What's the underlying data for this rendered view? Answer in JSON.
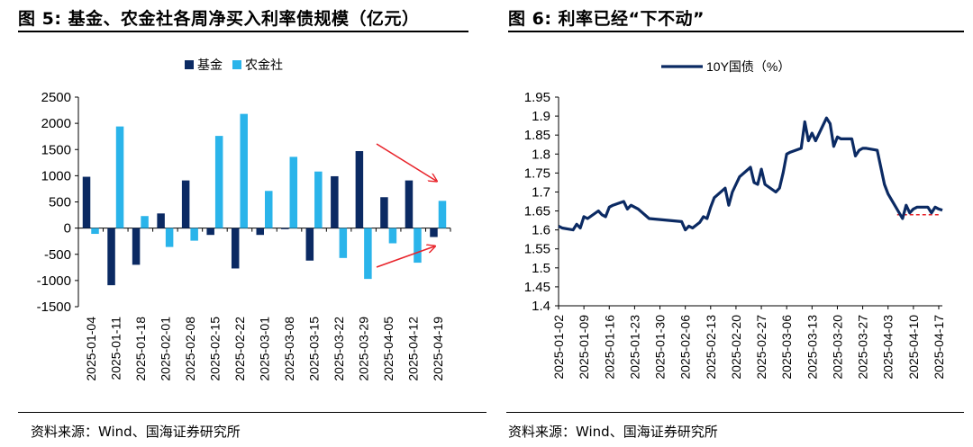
{
  "left": {
    "title": "图 5:  基金、农金社各周净买入利率债规模（亿元）",
    "source": "资料来源：Wind、国海证券研究所"
  },
  "right": {
    "title": "图 6:  利率已经“下不动”",
    "source": "资料来源：Wind、国海证券研究所"
  },
  "chart_data": [
    {
      "type": "bar",
      "title": "",
      "xlabel": "",
      "ylabel": "",
      "ylim": [
        -1500,
        2500
      ],
      "yticks": [
        -1500,
        -1000,
        -500,
        0,
        500,
        1000,
        1500,
        2000,
        2500
      ],
      "legend_position": "top",
      "categories": [
        "2025-01-04",
        "2025-01-11",
        "2025-01-18",
        "2025-02-01",
        "2025-02-08",
        "2025-02-15",
        "2025-02-22",
        "2025-03-01",
        "2025-03-08",
        "2025-03-15",
        "2025-03-22",
        "2025-03-29",
        "2025-04-05",
        "2025-04-12",
        "2025-04-19"
      ],
      "series": [
        {
          "name": "基金",
          "color": "#0b2a63",
          "values": [
            980,
            -1090,
            -700,
            280,
            910,
            -130,
            -770,
            -130,
            -20,
            -620,
            990,
            1470,
            590,
            910,
            -170
          ]
        },
        {
          "name": "农金社",
          "color": "#2ab4ea",
          "values": [
            -110,
            1940,
            230,
            -360,
            -240,
            1760,
            2180,
            710,
            1360,
            1080,
            -570,
            -970,
            -290,
            -660,
            520
          ]
        }
      ],
      "annotations": {
        "arrow_color": "#e8232a"
      }
    },
    {
      "type": "line",
      "title": "",
      "xlabel": "",
      "ylabel": "",
      "ylim": [
        1.4,
        1.95
      ],
      "yticks": [
        1.4,
        1.45,
        1.5,
        1.55,
        1.6,
        1.65,
        1.7,
        1.75,
        1.8,
        1.85,
        1.9,
        1.95
      ],
      "xticks": [
        "2025-01-02",
        "2025-01-09",
        "2025-01-16",
        "2025-01-23",
        "2025-01-30",
        "2025-02-06",
        "2025-02-13",
        "2025-02-20",
        "2025-02-27",
        "2025-03-06",
        "2025-03-13",
        "2025-03-20",
        "2025-03-27",
        "2025-04-03",
        "2025-04-10",
        "2025-04-17"
      ],
      "xrange": [
        "2025-01-02",
        "2025-04-18"
      ],
      "legend_position": "top",
      "series": [
        {
          "name": "10Y国债（%）",
          "color": "#0b2a63",
          "x": [
            "2025-01-02",
            "2025-01-03",
            "2025-01-06",
            "2025-01-07",
            "2025-01-08",
            "2025-01-09",
            "2025-01-10",
            "2025-01-13",
            "2025-01-14",
            "2025-01-15",
            "2025-01-16",
            "2025-01-17",
            "2025-01-20",
            "2025-01-21",
            "2025-01-22",
            "2025-01-23",
            "2025-01-24",
            "2025-01-27",
            "2025-02-05",
            "2025-02-06",
            "2025-02-07",
            "2025-02-08",
            "2025-02-10",
            "2025-02-11",
            "2025-02-12",
            "2025-02-13",
            "2025-02-14",
            "2025-02-17",
            "2025-02-18",
            "2025-02-19",
            "2025-02-20",
            "2025-02-21",
            "2025-02-24",
            "2025-02-25",
            "2025-02-26",
            "2025-02-27",
            "2025-02-28",
            "2025-03-03",
            "2025-03-04",
            "2025-03-05",
            "2025-03-06",
            "2025-03-07",
            "2025-03-10",
            "2025-03-11",
            "2025-03-12",
            "2025-03-13",
            "2025-03-14",
            "2025-03-17",
            "2025-03-18",
            "2025-03-19",
            "2025-03-20",
            "2025-03-21",
            "2025-03-24",
            "2025-03-25",
            "2025-03-26",
            "2025-03-27",
            "2025-03-28",
            "2025-03-31",
            "2025-04-01",
            "2025-04-02",
            "2025-04-03",
            "2025-04-07",
            "2025-04-08",
            "2025-04-09",
            "2025-04-10",
            "2025-04-11",
            "2025-04-14",
            "2025-04-15",
            "2025-04-16",
            "2025-04-17",
            "2025-04-18"
          ],
          "y": [
            1.61,
            1.605,
            1.6,
            1.615,
            1.605,
            1.635,
            1.63,
            1.65,
            1.64,
            1.635,
            1.66,
            1.665,
            1.675,
            1.655,
            1.665,
            1.66,
            1.655,
            1.63,
            1.622,
            1.6,
            1.61,
            1.605,
            1.62,
            1.635,
            1.63,
            1.66,
            1.685,
            1.71,
            1.665,
            1.7,
            1.72,
            1.74,
            1.765,
            1.725,
            1.72,
            1.76,
            1.72,
            1.7,
            1.71,
            1.75,
            1.8,
            1.805,
            1.815,
            1.885,
            1.835,
            1.855,
            1.835,
            1.895,
            1.88,
            1.82,
            1.845,
            1.84,
            1.84,
            1.795,
            1.81,
            1.815,
            1.815,
            1.81,
            1.765,
            1.72,
            1.695,
            1.63,
            1.665,
            1.645,
            1.655,
            1.66,
            1.66,
            1.645,
            1.66,
            1.655,
            1.652
          ]
        }
      ],
      "reference_line": {
        "y": 1.64,
        "color": "#e8232a",
        "style": "dashed"
      }
    }
  ]
}
